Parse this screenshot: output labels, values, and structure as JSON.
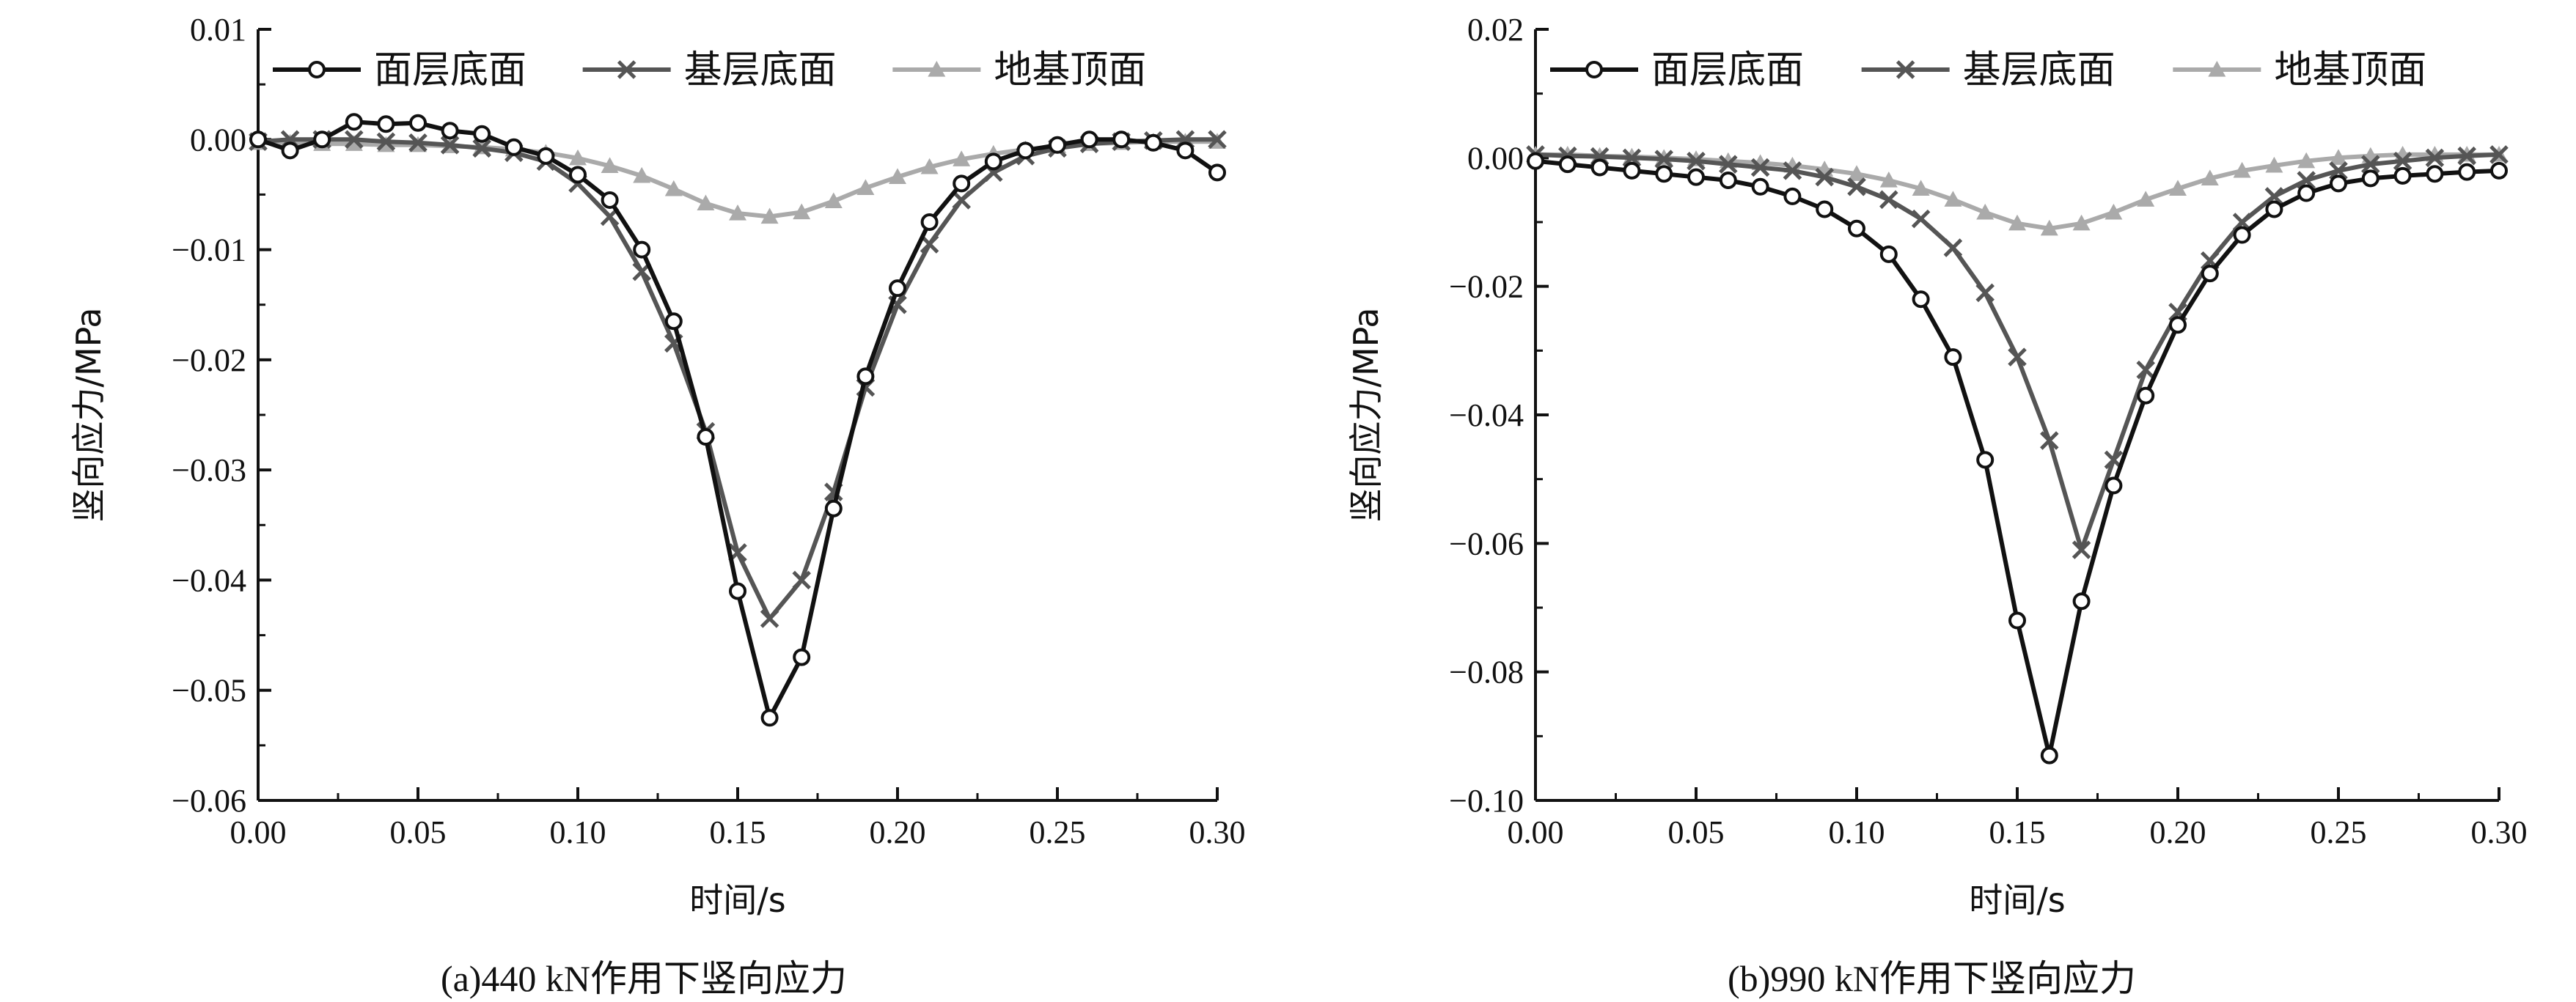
{
  "chart_data": [
    {
      "type": "line",
      "caption": "(a)440 kN作用下竖向应力",
      "xlabel": "时间/s",
      "ylabel": "竖向应力/MPa",
      "xlim": [
        0,
        0.3
      ],
      "ylim": [
        -0.06,
        0.01
      ],
      "xticks": [
        "0.00",
        "0.05",
        "0.10",
        "0.15",
        "0.20",
        "0.25",
        "0.30"
      ],
      "xtick_values": [
        0,
        0.05,
        0.1,
        0.15,
        0.2,
        0.25,
        0.3
      ],
      "yticks": [
        "0.01",
        "0.00",
        "−0.01",
        "−0.02",
        "−0.03",
        "−0.04",
        "−0.05",
        "−0.06"
      ],
      "ytick_values": [
        0.01,
        0.0,
        -0.01,
        -0.02,
        -0.03,
        -0.04,
        -0.05,
        -0.06
      ],
      "legend_position": "top",
      "series": [
        {
          "name": "面层底面",
          "marker": "circle",
          "color": "#111111",
          "x": [
            0.0,
            0.01,
            0.02,
            0.03,
            0.04,
            0.05,
            0.06,
            0.07,
            0.08,
            0.09,
            0.1,
            0.11,
            0.12,
            0.13,
            0.14,
            0.15,
            0.16,
            0.17,
            0.18,
            0.19,
            0.2,
            0.21,
            0.22,
            0.23,
            0.24,
            0.25,
            0.26,
            0.27,
            0.28,
            0.29,
            0.3
          ],
          "y": [
            0.0,
            -0.001,
            0.0,
            0.0016,
            0.0014,
            0.0015,
            0.0008,
            0.0005,
            -0.0007,
            -0.0015,
            -0.0032,
            -0.0055,
            -0.01,
            -0.0165,
            -0.027,
            -0.041,
            -0.0525,
            -0.047,
            -0.0335,
            -0.0215,
            -0.0135,
            -0.0075,
            -0.004,
            -0.002,
            -0.001,
            -0.0005,
            0.0,
            0.0,
            -0.0003,
            -0.001,
            -0.003
          ]
        },
        {
          "name": "基层底面",
          "marker": "x",
          "color": "#555555",
          "x": [
            0.0,
            0.01,
            0.02,
            0.03,
            0.04,
            0.05,
            0.06,
            0.07,
            0.08,
            0.09,
            0.1,
            0.11,
            0.12,
            0.13,
            0.14,
            0.15,
            0.16,
            0.17,
            0.18,
            0.19,
            0.2,
            0.21,
            0.22,
            0.23,
            0.24,
            0.25,
            0.26,
            0.27,
            0.28,
            0.29,
            0.3
          ],
          "y": [
            -0.0002,
            0.0,
            0.0,
            0.0,
            -0.0002,
            -0.0003,
            -0.0005,
            -0.0008,
            -0.0012,
            -0.002,
            -0.004,
            -0.007,
            -0.012,
            -0.0185,
            -0.0265,
            -0.0375,
            -0.0435,
            -0.04,
            -0.032,
            -0.0225,
            -0.015,
            -0.0095,
            -0.0055,
            -0.003,
            -0.0015,
            -0.0008,
            -0.0004,
            -0.0002,
            -0.0001,
            0.0,
            0.0
          ]
        },
        {
          "name": "地基顶面",
          "marker": "triangle",
          "color": "#aaaaaa",
          "x": [
            0.0,
            0.01,
            0.02,
            0.03,
            0.04,
            0.05,
            0.06,
            0.07,
            0.08,
            0.09,
            0.1,
            0.11,
            0.12,
            0.13,
            0.14,
            0.15,
            0.16,
            0.17,
            0.18,
            0.19,
            0.2,
            0.21,
            0.22,
            0.23,
            0.24,
            0.25,
            0.26,
            0.27,
            0.28,
            0.29,
            0.3
          ],
          "y": [
            -0.0003,
            -0.0003,
            -0.0004,
            -0.0004,
            -0.0005,
            -0.0005,
            -0.0006,
            -0.0007,
            -0.0009,
            -0.0012,
            -0.0017,
            -0.0024,
            -0.0033,
            -0.0045,
            -0.0058,
            -0.0067,
            -0.007,
            -0.0066,
            -0.0056,
            -0.0044,
            -0.0034,
            -0.0025,
            -0.0018,
            -0.0013,
            -0.0009,
            -0.0006,
            -0.0004,
            -0.0003,
            -0.0002,
            -0.0002,
            -0.0002
          ]
        }
      ]
    },
    {
      "type": "line",
      "caption": "(b)990 kN作用下竖向应力",
      "xlabel": "时间/s",
      "ylabel": "竖向应力/MPa",
      "xlim": [
        0,
        0.3
      ],
      "ylim": [
        -0.1,
        0.02
      ],
      "xticks": [
        "0.00",
        "0.05",
        "0.10",
        "0.15",
        "0.20",
        "0.25",
        "0.30"
      ],
      "xtick_values": [
        0,
        0.05,
        0.1,
        0.15,
        0.2,
        0.25,
        0.3
      ],
      "yticks": [
        "0.02",
        "0.00",
        "−0.02",
        "−0.04",
        "−0.06",
        "−0.08",
        "−0.10"
      ],
      "ytick_values": [
        0.02,
        0.0,
        -0.02,
        -0.04,
        -0.06,
        -0.08,
        -0.1
      ],
      "legend_position": "top",
      "series": [
        {
          "name": "面层底面",
          "marker": "circle",
          "color": "#111111",
          "x": [
            0.0,
            0.01,
            0.02,
            0.03,
            0.04,
            0.05,
            0.06,
            0.07,
            0.08,
            0.09,
            0.1,
            0.11,
            0.12,
            0.13,
            0.14,
            0.15,
            0.16,
            0.17,
            0.18,
            0.19,
            0.2,
            0.21,
            0.22,
            0.23,
            0.24,
            0.25,
            0.26,
            0.27,
            0.28,
            0.29,
            0.3
          ],
          "y": [
            -0.0005,
            -0.001,
            -0.0015,
            -0.002,
            -0.0025,
            -0.003,
            -0.0035,
            -0.0045,
            -0.006,
            -0.008,
            -0.011,
            -0.015,
            -0.022,
            -0.031,
            -0.047,
            -0.072,
            -0.093,
            -0.069,
            -0.051,
            -0.037,
            -0.026,
            -0.018,
            -0.012,
            -0.008,
            -0.0055,
            -0.004,
            -0.0032,
            -0.0028,
            -0.0025,
            -0.0022,
            -0.002
          ]
        },
        {
          "name": "基层底面",
          "marker": "x",
          "color": "#555555",
          "x": [
            0.0,
            0.01,
            0.02,
            0.03,
            0.04,
            0.05,
            0.06,
            0.07,
            0.08,
            0.09,
            0.1,
            0.11,
            0.12,
            0.13,
            0.14,
            0.15,
            0.16,
            0.17,
            0.18,
            0.19,
            0.2,
            0.21,
            0.22,
            0.23,
            0.24,
            0.25,
            0.26,
            0.27,
            0.28,
            0.29,
            0.3
          ],
          "y": [
            0.0005,
            0.0003,
            0.0002,
            0.0,
            -0.0002,
            -0.0005,
            -0.001,
            -0.0015,
            -0.002,
            -0.003,
            -0.0045,
            -0.0065,
            -0.0095,
            -0.014,
            -0.021,
            -0.031,
            -0.044,
            -0.061,
            -0.047,
            -0.033,
            -0.024,
            -0.016,
            -0.01,
            -0.006,
            -0.0035,
            -0.002,
            -0.001,
            -0.0005,
            0.0,
            0.0003,
            0.0005
          ]
        },
        {
          "name": "地基顶面",
          "marker": "triangle",
          "color": "#aaaaaa",
          "x": [
            0.0,
            0.01,
            0.02,
            0.03,
            0.04,
            0.05,
            0.06,
            0.07,
            0.08,
            0.09,
            0.1,
            0.11,
            0.12,
            0.13,
            0.14,
            0.15,
            0.16,
            0.17,
            0.18,
            0.19,
            0.2,
            0.21,
            0.22,
            0.23,
            0.24,
            0.25,
            0.26,
            0.27,
            0.28,
            0.29,
            0.3
          ],
          "y": [
            0.0005,
            0.0005,
            0.0003,
            0.0002,
            0.0,
            -0.0002,
            -0.0005,
            -0.0008,
            -0.0012,
            -0.0018,
            -0.0025,
            -0.0035,
            -0.0048,
            -0.0065,
            -0.0085,
            -0.0102,
            -0.011,
            -0.0102,
            -0.0085,
            -0.0065,
            -0.0048,
            -0.0032,
            -0.002,
            -0.0012,
            -0.0005,
            0.0,
            0.0003,
            0.0005,
            0.0005,
            0.0005,
            0.0005
          ]
        }
      ]
    }
  ]
}
